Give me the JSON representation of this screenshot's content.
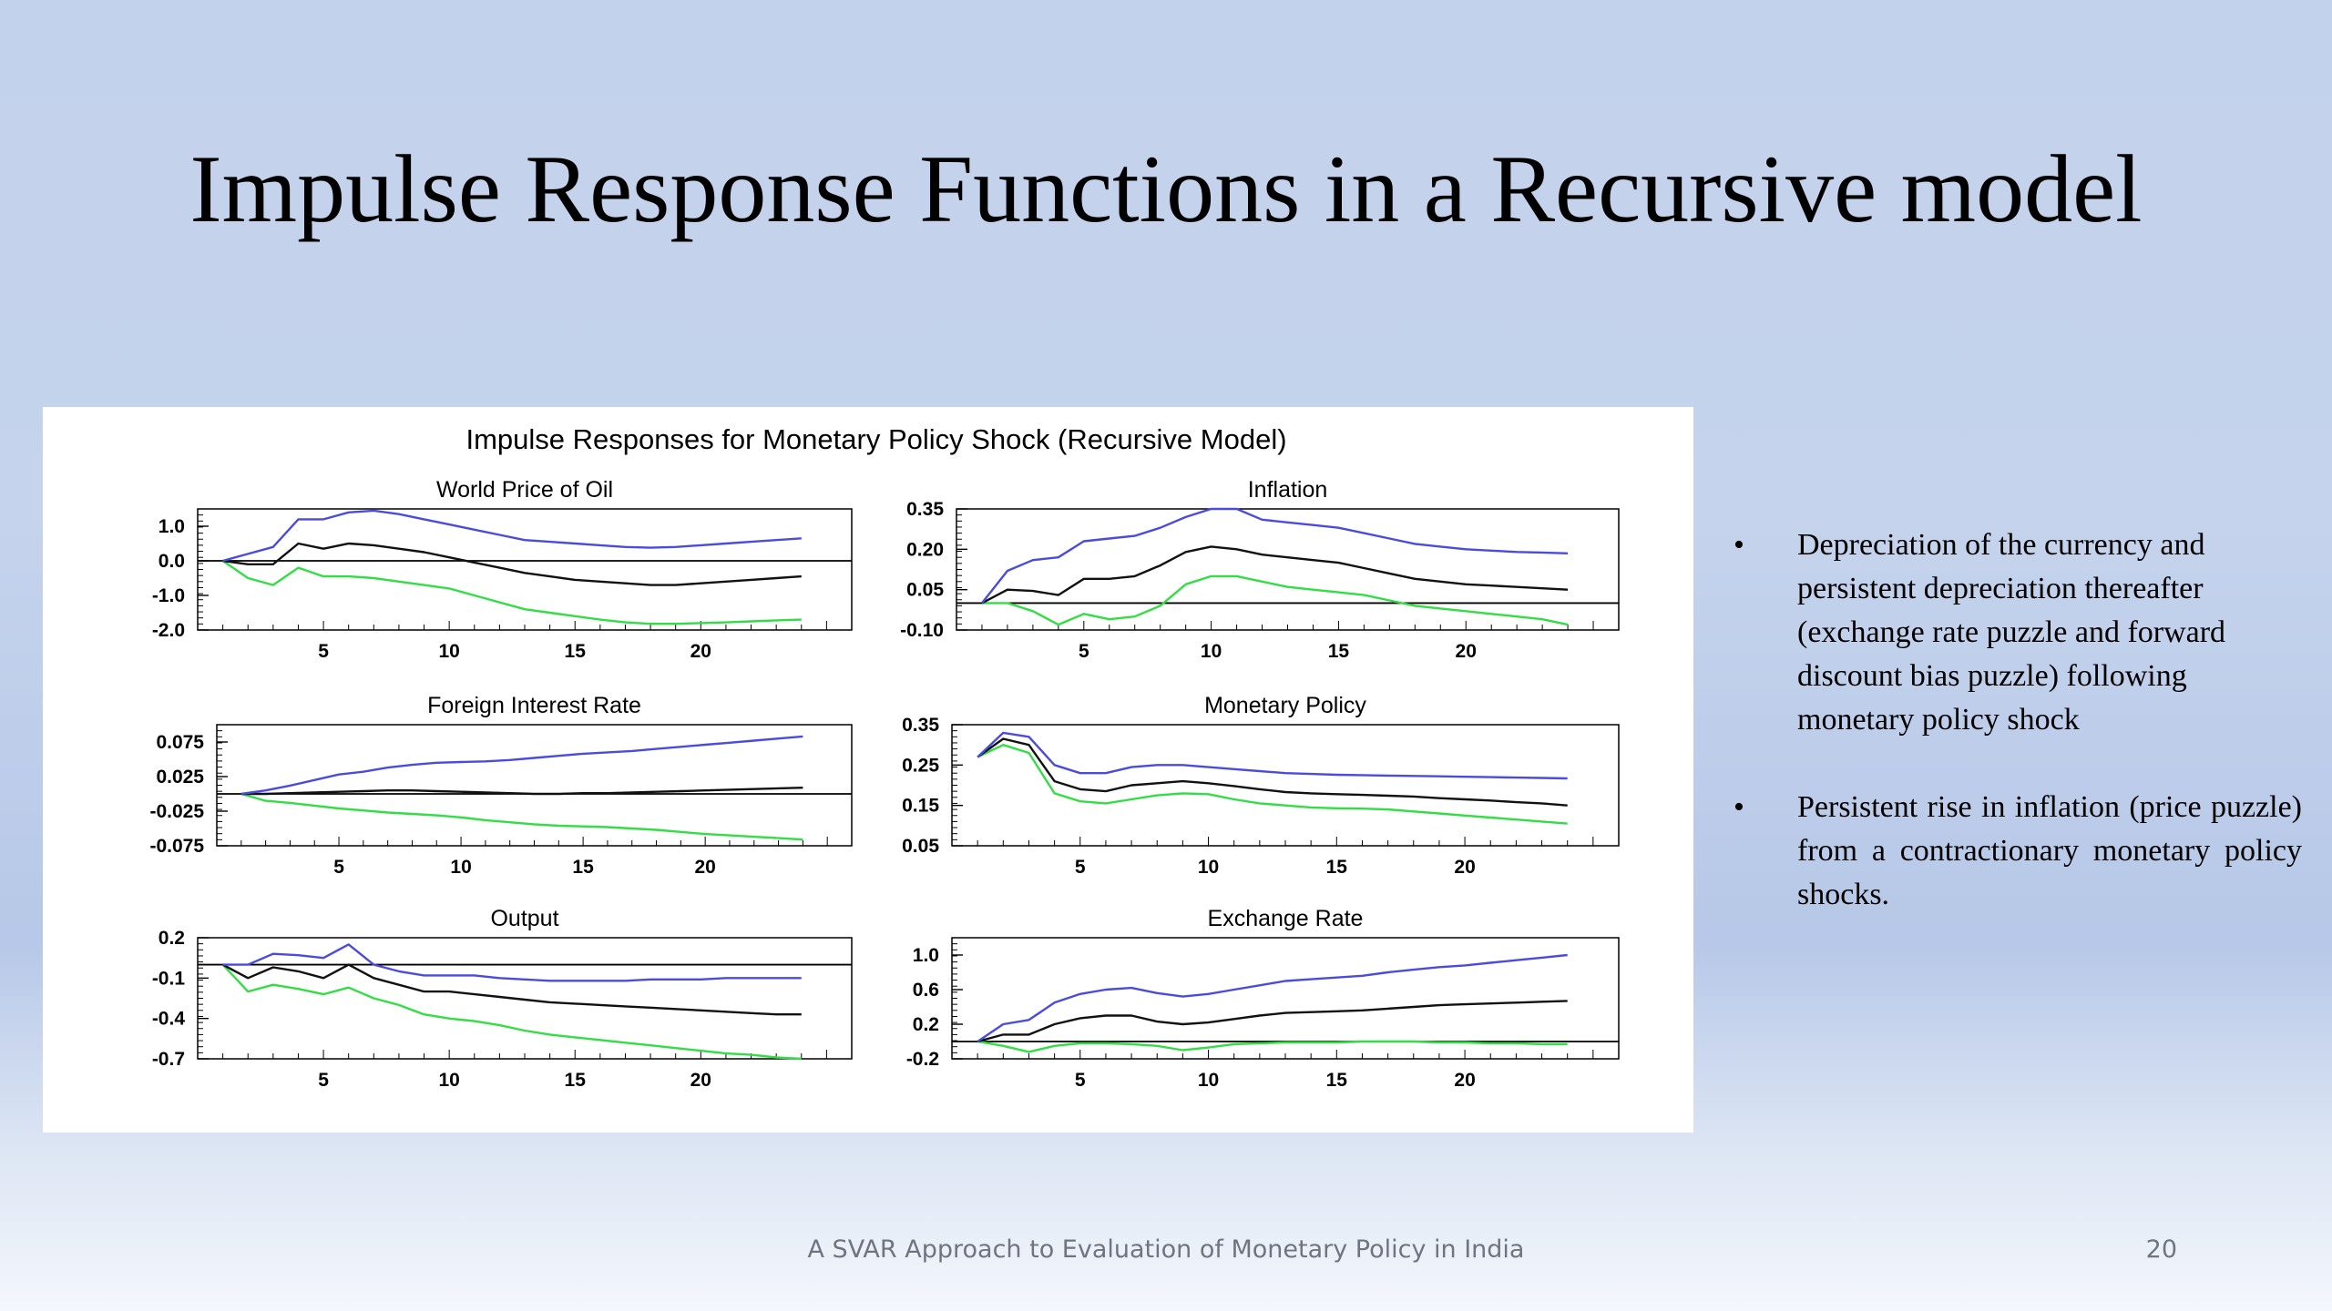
{
  "slide": {
    "title": "Impulse Response Functions in a Recursive model",
    "footer": "A SVAR Approach to Evaluation of Monetary Policy in India",
    "page_number": "20"
  },
  "bullets": [
    "Depreciation of the currency and persistent depreciation thereafter (exchange rate puzzle and forward discount bias puzzle) following monetary policy shock",
    "Persistent rise in inflation (price puzzle) from a contractionary monetary policy shocks."
  ],
  "colors": {
    "upper_band": "#4b4bdc",
    "response": "#111111",
    "lower_band": "#33dd44",
    "zero_line": "#000000"
  },
  "chart_data": {
    "type": "line",
    "title": "Impulse Responses for Monetary Policy Shock (Recursive Model)",
    "x": [
      1,
      2,
      3,
      4,
      5,
      6,
      7,
      8,
      9,
      10,
      11,
      12,
      13,
      14,
      15,
      16,
      17,
      18,
      19,
      20,
      21,
      22,
      23,
      24
    ],
    "xticks": [
      5,
      10,
      15,
      20
    ],
    "panels": [
      {
        "title": "World Price of Oil",
        "ylim": [
          -2.0,
          1.5
        ],
        "yticks": [
          1.0,
          0.0,
          -1.0,
          -2.0
        ],
        "ytick_labels": [
          "1.0",
          "0.0",
          "-1.0",
          "-2.0"
        ],
        "upper": [
          0.0,
          0.2,
          0.4,
          1.2,
          1.2,
          1.4,
          1.45,
          1.35,
          1.2,
          1.05,
          0.9,
          0.75,
          0.6,
          0.55,
          0.5,
          0.45,
          0.4,
          0.38,
          0.4,
          0.45,
          0.5,
          0.55,
          0.6,
          0.65
        ],
        "response": [
          0.0,
          -0.1,
          -0.1,
          0.5,
          0.35,
          0.5,
          0.45,
          0.35,
          0.25,
          0.1,
          -0.05,
          -0.2,
          -0.35,
          -0.45,
          -0.55,
          -0.6,
          -0.65,
          -0.7,
          -0.7,
          -0.65,
          -0.6,
          -0.55,
          -0.5,
          -0.45
        ],
        "lower": [
          0.0,
          -0.5,
          -0.7,
          -0.2,
          -0.45,
          -0.45,
          -0.5,
          -0.6,
          -0.7,
          -0.8,
          -1.0,
          -1.2,
          -1.4,
          -1.5,
          -1.6,
          -1.7,
          -1.78,
          -1.82,
          -1.82,
          -1.8,
          -1.78,
          -1.75,
          -1.72,
          -1.7
        ]
      },
      {
        "title": "Inflation",
        "ylim": [
          -0.1,
          0.35
        ],
        "yticks": [
          0.35,
          0.2,
          0.05,
          -0.1
        ],
        "ytick_labels": [
          "0.35",
          "0.20",
          "0.05",
          "-0.10"
        ],
        "upper": [
          0.0,
          0.12,
          0.16,
          0.17,
          0.23,
          0.24,
          0.25,
          0.28,
          0.32,
          0.35,
          0.35,
          0.31,
          0.3,
          0.29,
          0.28,
          0.26,
          0.24,
          0.22,
          0.21,
          0.2,
          0.195,
          0.19,
          0.188,
          0.185
        ],
        "response": [
          0.0,
          0.05,
          0.045,
          0.03,
          0.09,
          0.09,
          0.1,
          0.14,
          0.19,
          0.21,
          0.2,
          0.18,
          0.17,
          0.16,
          0.15,
          0.13,
          0.11,
          0.09,
          0.08,
          0.07,
          0.065,
          0.06,
          0.055,
          0.05
        ],
        "lower": [
          0.0,
          0.0,
          -0.03,
          -0.08,
          -0.04,
          -0.06,
          -0.05,
          -0.01,
          0.07,
          0.1,
          0.1,
          0.08,
          0.06,
          0.05,
          0.04,
          0.03,
          0.01,
          -0.01,
          -0.02,
          -0.03,
          -0.04,
          -0.05,
          -0.06,
          -0.08
        ]
      },
      {
        "title": "Foreign Interest Rate",
        "ylim": [
          -0.075,
          0.1
        ],
        "yticks": [
          0.075,
          0.025,
          -0.025,
          -0.075
        ],
        "ytick_labels": [
          "0.075",
          "0.025",
          "-0.025",
          "-0.075"
        ],
        "upper": [
          0.0,
          0.005,
          0.012,
          0.02,
          0.028,
          0.032,
          0.038,
          0.042,
          0.045,
          0.046,
          0.047,
          0.049,
          0.052,
          0.055,
          0.058,
          0.06,
          0.062,
          0.065,
          0.068,
          0.071,
          0.074,
          0.077,
          0.08,
          0.083
        ],
        "response": [
          0.0,
          0.0,
          0.001,
          0.002,
          0.003,
          0.004,
          0.005,
          0.005,
          0.004,
          0.003,
          0.002,
          0.001,
          0.0,
          0.0,
          0.001,
          0.001,
          0.002,
          0.003,
          0.004,
          0.005,
          0.006,
          0.007,
          0.008,
          0.009
        ],
        "lower": [
          0.0,
          -0.01,
          -0.013,
          -0.017,
          -0.021,
          -0.024,
          -0.027,
          -0.029,
          -0.031,
          -0.034,
          -0.038,
          -0.041,
          -0.044,
          -0.046,
          -0.047,
          -0.048,
          -0.05,
          -0.052,
          -0.055,
          -0.058,
          -0.06,
          -0.062,
          -0.064,
          -0.066
        ]
      },
      {
        "title": "Monetary Policy",
        "ylim": [
          0.05,
          0.35
        ],
        "yticks": [
          0.35,
          0.25,
          0.15,
          0.05
        ],
        "ytick_labels": [
          "0.35",
          "0.25",
          "0.15",
          "0.05"
        ],
        "upper": [
          0.27,
          0.33,
          0.32,
          0.25,
          0.23,
          0.23,
          0.245,
          0.25,
          0.25,
          0.245,
          0.24,
          0.235,
          0.23,
          0.228,
          0.226,
          0.225,
          0.224,
          0.223,
          0.222,
          0.221,
          0.22,
          0.219,
          0.218,
          0.217
        ],
        "response": [
          0.27,
          0.315,
          0.3,
          0.21,
          0.19,
          0.185,
          0.2,
          0.205,
          0.21,
          0.205,
          0.198,
          0.19,
          0.183,
          0.18,
          0.178,
          0.176,
          0.174,
          0.172,
          0.168,
          0.165,
          0.162,
          0.158,
          0.155,
          0.15
        ],
        "lower": [
          0.27,
          0.3,
          0.28,
          0.18,
          0.16,
          0.155,
          0.165,
          0.175,
          0.18,
          0.178,
          0.165,
          0.155,
          0.15,
          0.145,
          0.143,
          0.142,
          0.14,
          0.135,
          0.13,
          0.125,
          0.12,
          0.115,
          0.11,
          0.105
        ]
      },
      {
        "title": "Output",
        "ylim": [
          -0.7,
          0.2
        ],
        "yticks": [
          0.2,
          -0.1,
          -0.4,
          -0.7
        ],
        "ytick_labels": [
          "0.2",
          "-0.1",
          "-0.4",
          "-0.7"
        ],
        "upper": [
          0.0,
          0.0,
          0.08,
          0.07,
          0.05,
          0.15,
          0.0,
          -0.05,
          -0.08,
          -0.08,
          -0.08,
          -0.1,
          -0.11,
          -0.12,
          -0.12,
          -0.12,
          -0.12,
          -0.11,
          -0.11,
          -0.11,
          -0.1,
          -0.1,
          -0.1,
          -0.1
        ],
        "response": [
          0.0,
          -0.1,
          -0.02,
          -0.05,
          -0.1,
          0.0,
          -0.1,
          -0.15,
          -0.2,
          -0.2,
          -0.22,
          -0.24,
          -0.26,
          -0.28,
          -0.29,
          -0.3,
          -0.31,
          -0.32,
          -0.33,
          -0.34,
          -0.35,
          -0.36,
          -0.37,
          -0.37
        ],
        "lower": [
          0.0,
          -0.2,
          -0.15,
          -0.18,
          -0.22,
          -0.17,
          -0.25,
          -0.3,
          -0.37,
          -0.4,
          -0.42,
          -0.45,
          -0.49,
          -0.52,
          -0.54,
          -0.56,
          -0.58,
          -0.6,
          -0.62,
          -0.64,
          -0.66,
          -0.67,
          -0.69,
          -0.7
        ]
      },
      {
        "title": "Exchange Rate",
        "ylim": [
          -0.2,
          1.2
        ],
        "yticks": [
          1.0,
          0.6,
          0.2,
          -0.2
        ],
        "ytick_labels": [
          "1.0",
          "0.6",
          "0.2",
          "-0.2"
        ],
        "upper": [
          0.0,
          0.2,
          0.25,
          0.45,
          0.55,
          0.6,
          0.62,
          0.56,
          0.52,
          0.55,
          0.6,
          0.65,
          0.7,
          0.72,
          0.74,
          0.76,
          0.8,
          0.83,
          0.86,
          0.88,
          0.91,
          0.94,
          0.97,
          1.0
        ],
        "response": [
          0.0,
          0.08,
          0.08,
          0.2,
          0.27,
          0.3,
          0.3,
          0.23,
          0.2,
          0.22,
          0.26,
          0.3,
          0.33,
          0.34,
          0.35,
          0.36,
          0.38,
          0.4,
          0.42,
          0.43,
          0.44,
          0.45,
          0.46,
          0.47
        ],
        "lower": [
          0.0,
          -0.05,
          -0.12,
          -0.05,
          -0.02,
          -0.02,
          -0.03,
          -0.05,
          -0.1,
          -0.07,
          -0.03,
          -0.02,
          -0.01,
          -0.01,
          -0.01,
          0.0,
          0.0,
          0.0,
          -0.01,
          -0.01,
          -0.02,
          -0.02,
          -0.03,
          -0.03
        ]
      }
    ]
  }
}
